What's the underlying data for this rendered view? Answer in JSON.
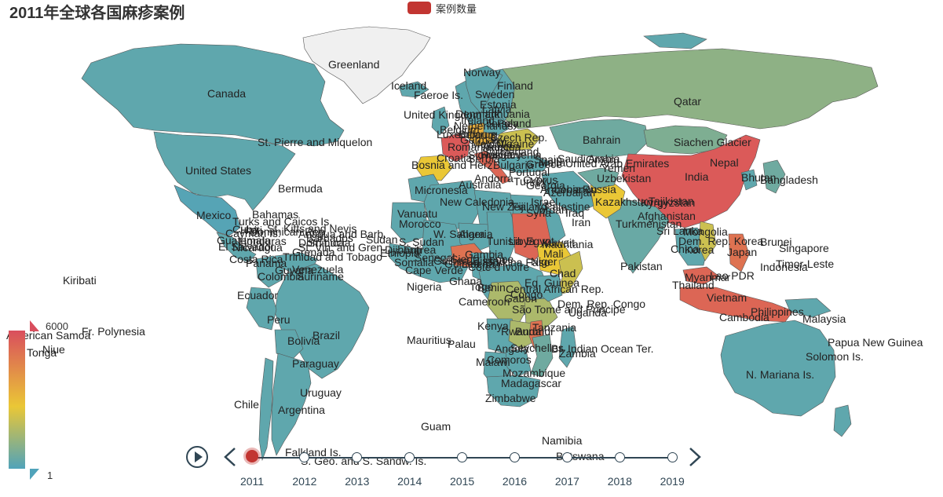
{
  "title": "2011年全球各国麻疹案例",
  "legend": {
    "label": "案例数量",
    "color": "#c23531"
  },
  "colors": {
    "low": "#50a3ba",
    "mid": "#eac736",
    "high": "#d94e5d",
    "no_data": "#f0f0f0",
    "border": "#555555",
    "ocean": "#ffffff",
    "timeline": "#304654",
    "timeline_active": "#c23531"
  },
  "visual_map": {
    "max": "6000",
    "min": "1"
  },
  "timeline": {
    "play_icon": "play-icon",
    "prev_icon": "chevron-left-icon",
    "next_icon": "chevron-right-icon",
    "active_year": "2011",
    "years": [
      "2011",
      "2012",
      "2013",
      "2014",
      "2015",
      "2016",
      "2017",
      "2018",
      "2019"
    ]
  },
  "chart_data": {
    "type": "choropleth",
    "title": "2011年全球各国麻疹案例",
    "series": [
      {
        "name": "案例数量"
      }
    ],
    "value_range": [
      1,
      6000
    ],
    "countries": [
      {
        "name": "Greenland",
        "level": "none"
      },
      {
        "name": "Canada",
        "level": 0.05
      },
      {
        "name": "United States",
        "level": 0.05
      },
      {
        "name": "Mexico",
        "level": 0.02
      },
      {
        "name": "Russia",
        "level": 0.2
      },
      {
        "name": "China",
        "level": 0.95
      },
      {
        "name": "Mongolia",
        "level": 0.15
      },
      {
        "name": "Kazakhstan",
        "level": 0.1
      },
      {
        "name": "India",
        "level": 0.08
      },
      {
        "name": "Pakistan",
        "level": 0.5
      },
      {
        "name": "Afghanistan",
        "level": 0.1
      },
      {
        "name": "Iran",
        "level": 0.05
      },
      {
        "name": "Saudi Arabia",
        "level": 0.05
      },
      {
        "name": "Sudan",
        "level": 0.9
      },
      {
        "name": "Ethiopia",
        "level": 0.5
      },
      {
        "name": "Somalia",
        "level": 0.4
      },
      {
        "name": "Burkina Faso",
        "level": 0.85
      },
      {
        "name": "Dem. Rep. Congo",
        "level": 0.3
      },
      {
        "name": "Tanzania",
        "level": 0.3
      },
      {
        "name": "Zambia",
        "level": 0.3
      },
      {
        "name": "Malawi",
        "level": 0.85
      },
      {
        "name": "Mozambique",
        "level": 0.1
      },
      {
        "name": "Madagascar",
        "level": 0.05
      },
      {
        "name": "South Africa",
        "level": 0.05
      },
      {
        "name": "Brazil",
        "level": 0.05
      },
      {
        "name": "Argentina",
        "level": 0.05
      },
      {
        "name": "Indonesia",
        "level": 0.9
      },
      {
        "name": "Malaysia",
        "level": 0.9
      },
      {
        "name": "Philippines",
        "level": 0.85
      },
      {
        "name": "Vietnam",
        "level": 0.4
      },
      {
        "name": "Australia",
        "level": 0.05
      },
      {
        "name": "Japan",
        "level": 0.1
      },
      {
        "name": "Korea",
        "level": 0.05
      },
      {
        "name": "France",
        "level": 0.95
      },
      {
        "name": "Spain",
        "level": 0.5
      },
      {
        "name": "Italy",
        "level": 0.9
      },
      {
        "name": "Germany",
        "level": 0.6
      },
      {
        "name": "Ukraine",
        "level": 0.4
      }
    ]
  },
  "map_labels": [
    "Greenland",
    "Canada",
    "United States",
    "Mexico",
    "Bermuda",
    "St. Pierre and Miquelon",
    "Bahamas",
    "Turks and Caicos Is.",
    "Cuba",
    "Cayman Is.",
    "Dominican Rep.",
    "Haiti",
    "St. Kitts and Nevis",
    "Antigua and Barb.",
    "Guatemala",
    "El Salvador",
    "Nicaragua",
    "Honduras",
    "Costa Rica",
    "Panama",
    "Trinidad and Tobago",
    "St. Vin. and Gren.",
    "Barbados",
    "Grenada",
    "Dominica",
    "St. Lucia",
    "Venezuela",
    "Colombia",
    "Suriname",
    "Guyana",
    "Ecuador",
    "Peru",
    "Brazil",
    "Bolivia",
    "Paraguay",
    "Uruguay",
    "Argentina",
    "Chile",
    "Falkland Is.",
    "S. Geo. and S. Sandw. Is.",
    "Kiribati",
    "American Samoa",
    "Fr. Polynesia",
    "Niue",
    "Tonga",
    "Iceland",
    "Faeroe Is.",
    "Norway",
    "Finland",
    "Sweden",
    "Estonia",
    "Latvia",
    "Lithuania",
    "Denmark",
    "United Kingdom",
    "Ireland",
    "Netherlands",
    "Belgium",
    "Luxembourg",
    "Jersey",
    "Poland",
    "Belarus",
    "Germany",
    "Czech Rep.",
    "Ukraine",
    "Moldova",
    "Romania",
    "France",
    "Switzerland",
    "Austria",
    "Slovakia",
    "Hungary",
    "Slovenia",
    "Croatia",
    "Bosnia and Herz.",
    "Serbia",
    "Bulgaria",
    "Andorra",
    "Portugal",
    "Spain",
    "Greece",
    "Malta",
    "Cyprus",
    "Turkey",
    "Georgia",
    "Armenia",
    "Azerbaijan",
    "Lebanon",
    "Israel",
    "Palestine",
    "Jordan",
    "Syria",
    "Iraq",
    "Iran",
    "Kuwait",
    "Qatar",
    "Bahrain",
    "Saudi Arabia",
    "United Arab Emirates",
    "Oman",
    "Yemen",
    "Russia",
    "Kazakhstan",
    "Uzbekistan",
    "Turkmenistan",
    "Kyrgyzstan",
    "Tajikistan",
    "Afghanistan",
    "Pakistan",
    "Siachen Glacier",
    "India",
    "Nepal",
    "Bhutan",
    "Bangladesh",
    "Sri Lanka",
    "Mongolia",
    "China",
    "Dem. Rep. Korea",
    "Korea",
    "Japan",
    "Myanmar",
    "Lao PDR",
    "Thailand",
    "Vietnam",
    "Cambodia",
    "Philippines",
    "Malaysia",
    "Brunei",
    "Singapore",
    "Indonesia",
    "Timor-Leste",
    "Papua New Guinea",
    "Solomon Is.",
    "N. Mariana Is.",
    "Guam",
    "Palau",
    "Micronesia",
    "Vanuatu",
    "New Caledonia",
    "Australia",
    "New Zealand",
    "Fiji",
    "Morocco",
    "W. Sahara",
    "Algeria",
    "Tunisia",
    "Libya",
    "Egypt",
    "Mauritania",
    "Mali",
    "Niger",
    "Chad",
    "Sudan",
    "S. Sudan",
    "Eritrea",
    "Djibouti",
    "Ethiopia",
    "Somalia",
    "Cape Verde",
    "Senegal",
    "Gambia",
    "Guinea-Bissau",
    "Guinea",
    "Sierra Leone",
    "Liberia",
    "Côte d'Ivoire",
    "Burkina Faso",
    "Ghana",
    "Togo",
    "Benin",
    "Nigeria",
    "Cameroon",
    "Central African Rep.",
    "Eq. Guinea",
    "Gabon",
    "Congo",
    "São Tomé and Principe",
    "Dem. Rep. Congo",
    "Uganda",
    "Kenya",
    "Rwanda",
    "Burundi",
    "Tanzania",
    "Seychelles",
    "Br. Indian Ocean Ter.",
    "Angola",
    "Zambia",
    "Malawi",
    "Comoros",
    "Mozambique",
    "Madagascar",
    "Zimbabwe",
    "Mauritius",
    "Namibia",
    "Botswana",
    "Swaziland",
    "Lesotho",
    "South Africa",
    "Saint Helena",
    "Fr. S. Antarctic Lands",
    "Heard I. and McDonald Is."
  ]
}
